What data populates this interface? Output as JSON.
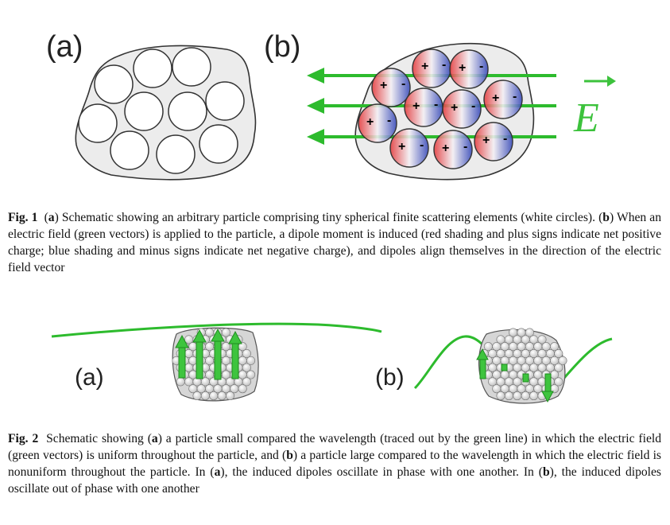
{
  "fig1": {
    "panel_a": "(a)",
    "panel_b": "(b)",
    "field_symbol": "E",
    "plus_sign": "+",
    "minus_sign": "-",
    "caption": {
      "label": "Fig. 1",
      "t1": "(",
      "a": "a",
      "t2": ") Schematic showing an arbitrary particle comprising tiny spherical finite scattering elements (white circles). (",
      "b": "b",
      "t3": ") When an electric field (green vectors) is applied to the particle, a dipole moment is induced (red shading and plus signs indicate net positive charge; blue shading and minus signs indicate net negative charge), and dipoles align themselves in the direction of the electric field vector"
    }
  },
  "fig2": {
    "panel_a": "(a)",
    "panel_b": "(b)",
    "caption": {
      "label": "Fig. 2",
      "t1": "Schematic showing (",
      "a1": "a",
      "t2": ") a particle small compared the wavelength (traced out by the green line) in which the electric field (green vectors) is uniform throughout the particle, and (",
      "b1": "b",
      "t3": ") a particle large compared to the wavelength in which the electric field is nonuniform throughout the particle. In (",
      "a2": "a",
      "t4": "), the induced dipoles oscillate in phase with one another. In (",
      "b2": "b",
      "t5": "), the induced dipoles oscillate out of phase with one another"
    }
  },
  "colors": {
    "green": "#3cc23c",
    "red": "#e4393b",
    "blue": "#3447b8",
    "outline": "#333333",
    "particle_fill": "#ececec"
  }
}
